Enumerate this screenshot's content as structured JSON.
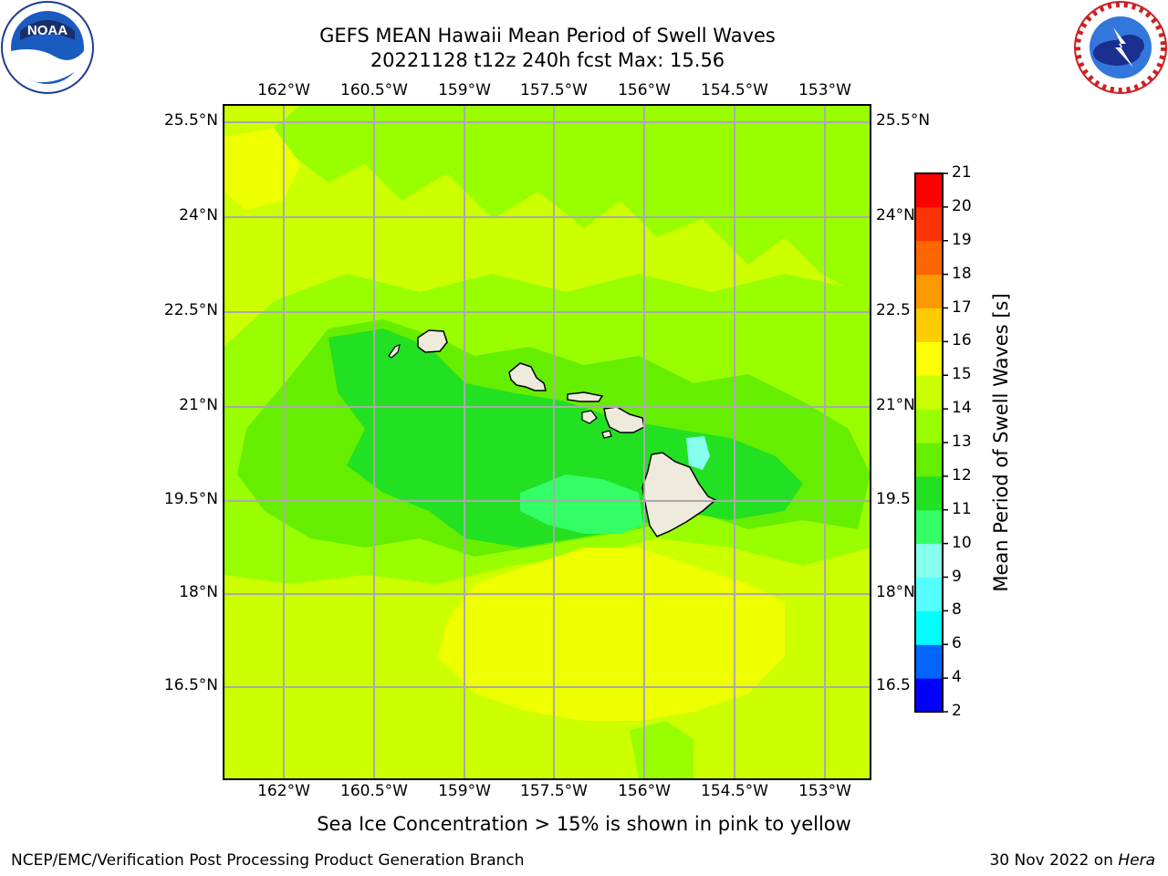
{
  "title": {
    "line1": "GEFS MEAN Hawaii Mean Period of Swell Waves",
    "line2": "20221128 t12z 240h fcst   Max: 15.56"
  },
  "map": {
    "lon_labels": [
      "162°W",
      "160.5°W",
      "159°W",
      "157.5°W",
      "156°W",
      "154.5°W",
      "153°W"
    ],
    "lat_labels_left": [
      "25.5°N",
      "24°N",
      "22.5°N",
      "21°N",
      "19.5°N",
      "18°N",
      "16.5°N"
    ],
    "lat_labels_right": [
      "25.5°N",
      "24°N",
      "22.5",
      "21°N",
      "19.5",
      "18°N",
      "16.5"
    ],
    "max_value": 15.56,
    "islands": [
      "Kauai",
      "Niihau",
      "Oahu",
      "Molokai",
      "Lanai",
      "Maui",
      "Kahoolawe",
      "Hawaii"
    ]
  },
  "colorbar": {
    "label": "Mean Period of Swell Waves [s]",
    "ticks": [
      "2",
      "4",
      "6",
      "8",
      "9",
      "10",
      "11",
      "12",
      "13",
      "14",
      "15",
      "16",
      "17",
      "18",
      "19",
      "20",
      "21"
    ],
    "colors": [
      "#0000ff",
      "#0066ff",
      "#00ffff",
      "#55ffff",
      "#88ffee",
      "#33ff66",
      "#22e022",
      "#66ee00",
      "#99ff00",
      "#ccff00",
      "#ffff00",
      "#ffcc00",
      "#ff9900",
      "#ff6600",
      "#ff3300",
      "#ff0000"
    ]
  },
  "field_colors": {
    "p10": "#33ff66",
    "p11": "#22e022",
    "p12": "#66ee00",
    "p13": "#99ff00",
    "p14": "#ccff00",
    "p15": "#eeff00",
    "land": "#eeebdd"
  },
  "note": "Sea Ice Concentration > 15% is shown in pink to yellow",
  "footer": {
    "left": "NCEP/EMC/Verification Post Processing Product Generation Branch",
    "right_date": "30 Nov 2022 on ",
    "right_machine": "Hera"
  },
  "logos": {
    "noaa_text": "NOAA",
    "nws_text": "NATIONAL WEATHER SERVICE"
  }
}
